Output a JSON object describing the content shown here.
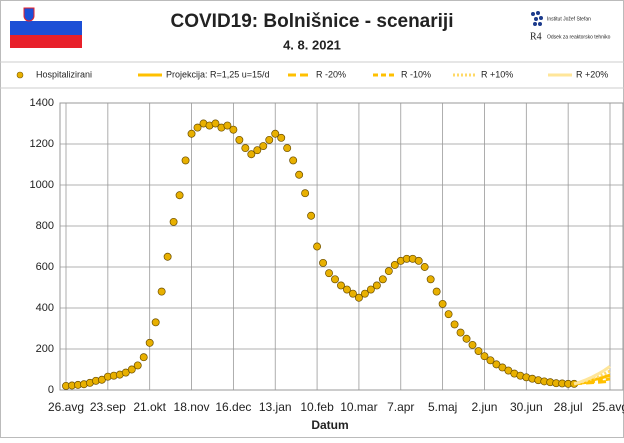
{
  "header": {
    "title": "COVID19: Bolnišnice - scenariji",
    "subtitle": "4. 8. 2021",
    "institute": "Institut Jožef Stefan",
    "logo": "R4",
    "department": "Odsek za reaktorsko tehniko"
  },
  "chart_data": {
    "type": "scatter",
    "xlabel": "Datum",
    "categories": [
      "26.avg",
      null,
      null,
      null,
      null,
      null,
      null,
      "23.sep",
      null,
      null,
      null,
      null,
      null,
      null,
      "21.okt",
      null,
      null,
      null,
      null,
      null,
      null,
      "18.nov",
      null,
      null,
      null,
      null,
      null,
      null,
      "16.dec",
      null,
      null,
      null,
      null,
      null,
      null,
      "13.jan",
      null,
      null,
      null,
      null,
      null,
      null,
      "10.feb",
      null,
      null,
      null,
      null,
      null,
      null,
      "10.mar",
      null,
      null,
      null,
      null,
      null,
      null,
      "7.apr",
      null,
      null,
      null,
      null,
      null,
      null,
      "5.maj",
      null,
      null,
      null,
      null,
      null,
      null,
      "2.jun",
      null,
      null,
      null,
      null,
      null,
      null,
      "30.jun",
      null,
      null,
      null,
      null,
      null,
      null,
      "28.jul",
      null,
      null,
      null,
      null,
      null,
      null,
      "25.avg"
    ],
    "ylim": [
      0,
      1400
    ],
    "yticks": [
      0,
      200,
      400,
      600,
      800,
      1000,
      1200,
      1400
    ],
    "grid": true,
    "series": [
      {
        "name": "Hospitalizirani",
        "color": "#e8b000",
        "style": "dots",
        "values": [
          20,
          22,
          25,
          28,
          35,
          45,
          50,
          65,
          70,
          75,
          85,
          100,
          120,
          160,
          230,
          330,
          480,
          650,
          820,
          950,
          1120,
          1250,
          1280,
          1300,
          1290,
          1300,
          1280,
          1290,
          1270,
          1220,
          1180,
          1150,
          1170,
          1190,
          1220,
          1250,
          1230,
          1180,
          1120,
          1050,
          960,
          850,
          700,
          620,
          570,
          540,
          510,
          490,
          470,
          450,
          470,
          490,
          510,
          540,
          580,
          610,
          630,
          640,
          640,
          630,
          600,
          540,
          480,
          420,
          370,
          320,
          280,
          250,
          220,
          190,
          165,
          145,
          125,
          110,
          95,
          80,
          70,
          62,
          55,
          48,
          42,
          38,
          33,
          32,
          30,
          30,
          null,
          null,
          null,
          null,
          null,
          null
        ]
      },
      {
        "name": "Projekcija: R=1,25 u=15/d",
        "color": "#ffc000",
        "style": "solid",
        "values": [
          null,
          null,
          null,
          null,
          null,
          null,
          null,
          null,
          null,
          null,
          null,
          null,
          null,
          null,
          null,
          null,
          null,
          null,
          null,
          null,
          null,
          null,
          null,
          null,
          null,
          null,
          null,
          null,
          null,
          null,
          null,
          null,
          null,
          null,
          null,
          null,
          null,
          null,
          null,
          null,
          null,
          null,
          null,
          null,
          null,
          null,
          null,
          null,
          null,
          null,
          null,
          null,
          null,
          null,
          null,
          null,
          null,
          null,
          null,
          null,
          null,
          null,
          null,
          null,
          null,
          null,
          null,
          null,
          null,
          null,
          null,
          null,
          null,
          null,
          null,
          null,
          null,
          null,
          null,
          null,
          null,
          null,
          null,
          null,
          null,
          30,
          35,
          40,
          48,
          55,
          63,
          72
        ]
      },
      {
        "name": "R -20%",
        "color": "#ffc000",
        "style": "dash-long",
        "values": [
          null,
          null,
          null,
          null,
          null,
          null,
          null,
          null,
          null,
          null,
          null,
          null,
          null,
          null,
          null,
          null,
          null,
          null,
          null,
          null,
          null,
          null,
          null,
          null,
          null,
          null,
          null,
          null,
          null,
          null,
          null,
          null,
          null,
          null,
          null,
          null,
          null,
          null,
          null,
          null,
          null,
          null,
          null,
          null,
          null,
          null,
          null,
          null,
          null,
          null,
          null,
          null,
          null,
          null,
          null,
          null,
          null,
          null,
          null,
          null,
          null,
          null,
          null,
          null,
          null,
          null,
          null,
          null,
          null,
          null,
          null,
          null,
          null,
          null,
          null,
          null,
          null,
          null,
          null,
          null,
          null,
          null,
          null,
          null,
          null,
          30,
          32,
          34,
          36,
          38,
          40,
          42
        ]
      },
      {
        "name": "R -10%",
        "color": "#ffc000",
        "style": "dash",
        "values": [
          null,
          null,
          null,
          null,
          null,
          null,
          null,
          null,
          null,
          null,
          null,
          null,
          null,
          null,
          null,
          null,
          null,
          null,
          null,
          null,
          null,
          null,
          null,
          null,
          null,
          null,
          null,
          null,
          null,
          null,
          null,
          null,
          null,
          null,
          null,
          null,
          null,
          null,
          null,
          null,
          null,
          null,
          null,
          null,
          null,
          null,
          null,
          null,
          null,
          null,
          null,
          null,
          null,
          null,
          null,
          null,
          null,
          null,
          null,
          null,
          null,
          null,
          null,
          null,
          null,
          null,
          null,
          null,
          null,
          null,
          null,
          null,
          null,
          null,
          null,
          null,
          null,
          null,
          null,
          null,
          null,
          null,
          null,
          null,
          null,
          30,
          33,
          37,
          41,
          45,
          49,
          54
        ]
      },
      {
        "name": "R +10%",
        "color": "#ffd966",
        "style": "dot",
        "values": [
          null,
          null,
          null,
          null,
          null,
          null,
          null,
          null,
          null,
          null,
          null,
          null,
          null,
          null,
          null,
          null,
          null,
          null,
          null,
          null,
          null,
          null,
          null,
          null,
          null,
          null,
          null,
          null,
          null,
          null,
          null,
          null,
          null,
          null,
          null,
          null,
          null,
          null,
          null,
          null,
          null,
          null,
          null,
          null,
          null,
          null,
          null,
          null,
          null,
          null,
          null,
          null,
          null,
          null,
          null,
          null,
          null,
          null,
          null,
          null,
          null,
          null,
          null,
          null,
          null,
          null,
          null,
          null,
          null,
          null,
          null,
          null,
          null,
          null,
          null,
          null,
          null,
          null,
          null,
          null,
          null,
          null,
          null,
          null,
          null,
          30,
          37,
          45,
          55,
          66,
          78,
          92
        ]
      },
      {
        "name": "R +20%",
        "color": "#ffe699",
        "style": "double",
        "values": [
          null,
          null,
          null,
          null,
          null,
          null,
          null,
          null,
          null,
          null,
          null,
          null,
          null,
          null,
          null,
          null,
          null,
          null,
          null,
          null,
          null,
          null,
          null,
          null,
          null,
          null,
          null,
          null,
          null,
          null,
          null,
          null,
          null,
          null,
          null,
          null,
          null,
          null,
          null,
          null,
          null,
          null,
          null,
          null,
          null,
          null,
          null,
          null,
          null,
          null,
          null,
          null,
          null,
          null,
          null,
          null,
          null,
          null,
          null,
          null,
          null,
          null,
          null,
          null,
          null,
          null,
          null,
          null,
          null,
          null,
          null,
          null,
          null,
          null,
          null,
          null,
          null,
          null,
          null,
          null,
          null,
          null,
          null,
          null,
          null,
          30,
          39,
          50,
          63,
          78,
          95,
          115
        ]
      }
    ]
  }
}
